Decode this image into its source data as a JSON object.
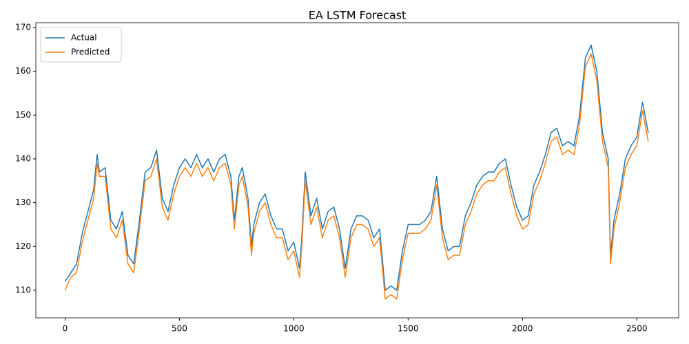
{
  "chart_data": {
    "type": "line",
    "title": "EA LSTM Forecast",
    "x": [
      0,
      25,
      50,
      75,
      100,
      125,
      140,
      150,
      175,
      200,
      225,
      250,
      275,
      300,
      325,
      350,
      375,
      400,
      425,
      450,
      475,
      500,
      525,
      550,
      575,
      600,
      625,
      650,
      675,
      700,
      725,
      740,
      760,
      775,
      800,
      815,
      825,
      850,
      875,
      900,
      925,
      950,
      975,
      1000,
      1025,
      1035,
      1050,
      1075,
      1100,
      1125,
      1150,
      1175,
      1200,
      1225,
      1250,
      1275,
      1300,
      1325,
      1350,
      1375,
      1400,
      1425,
      1450,
      1475,
      1500,
      1525,
      1550,
      1575,
      1600,
      1625,
      1650,
      1675,
      1700,
      1725,
      1750,
      1775,
      1800,
      1825,
      1850,
      1875,
      1900,
      1925,
      1950,
      1975,
      2000,
      2025,
      2050,
      2075,
      2100,
      2125,
      2150,
      2175,
      2200,
      2225,
      2250,
      2275,
      2300,
      2325,
      2350,
      2375,
      2385,
      2400,
      2425,
      2450,
      2475,
      2500,
      2525,
      2550
    ],
    "series": [
      {
        "name": "Actual",
        "color": "#1f77b4",
        "values": [
          112,
          114,
          116,
          123,
          128,
          133,
          141,
          137,
          138,
          126,
          124,
          128,
          118,
          116,
          126,
          137,
          138,
          142,
          131,
          128,
          134,
          138,
          140,
          138,
          141,
          138,
          140,
          137,
          140,
          141,
          136,
          126,
          136,
          138,
          131,
          120,
          125,
          130,
          132,
          127,
          124,
          124,
          119,
          121,
          115,
          122,
          137,
          127,
          131,
          124,
          128,
          129,
          124,
          115,
          124,
          127,
          127,
          126,
          122,
          124,
          110,
          111,
          110,
          119,
          125,
          125,
          125,
          126,
          128,
          136,
          124,
          119,
          120,
          120,
          127,
          130,
          134,
          136,
          137,
          137,
          139,
          140,
          134,
          129,
          126,
          127,
          134,
          137,
          141,
          146,
          147,
          143,
          144,
          143,
          150,
          163,
          166,
          160,
          146,
          140,
          118,
          126,
          132,
          140,
          143,
          145,
          153,
          146
        ]
      },
      {
        "name": "Predicted",
        "color": "#ff7f0e",
        "values": [
          110,
          113,
          114,
          121,
          126,
          131,
          139,
          136,
          136,
          124,
          122,
          126,
          116,
          114,
          124,
          135,
          136,
          140,
          129,
          126,
          132,
          136,
          138,
          136,
          139,
          136,
          138,
          135,
          138,
          139,
          134,
          124,
          134,
          136,
          129,
          118,
          123,
          128,
          130,
          125,
          122,
          122,
          117,
          119,
          113,
          120,
          135,
          125,
          129,
          122,
          126,
          127,
          122,
          113,
          122,
          125,
          125,
          124,
          120,
          122,
          108,
          109,
          108,
          117,
          123,
          123,
          123,
          124,
          126,
          134,
          122,
          117,
          118,
          118,
          125,
          128,
          132,
          134,
          135,
          135,
          137,
          138,
          132,
          127,
          124,
          125,
          132,
          135,
          139,
          144,
          145,
          141,
          142,
          141,
          148,
          161,
          164,
          158,
          144,
          138,
          116,
          124,
          130,
          138,
          141,
          143,
          151,
          144
        ]
      }
    ],
    "xlim": [
      -128,
      2683
    ],
    "ylim": [
      103.7,
      171.1
    ],
    "xticks": [
      0,
      500,
      1000,
      1500,
      2000,
      2500
    ],
    "yticks": [
      110,
      120,
      130,
      140,
      150,
      160,
      170
    ],
    "legend": "upper left"
  }
}
